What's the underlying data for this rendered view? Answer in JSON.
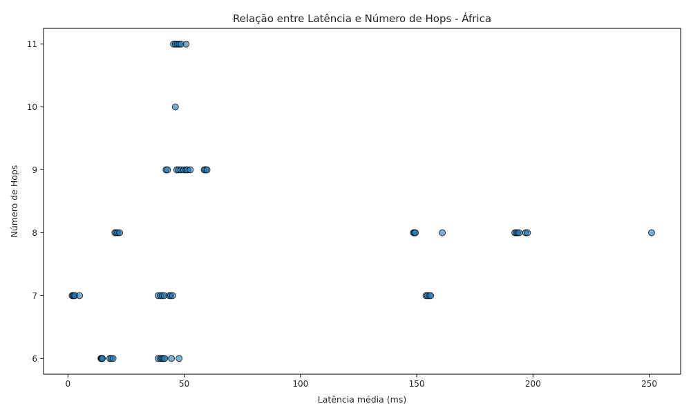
{
  "chart_data": {
    "type": "scatter",
    "title": "Relação entre Latência e Número de Hops - África",
    "xlabel": "Latência média (ms)",
    "ylabel": "Número de Hops",
    "xlim": [
      -10.5,
      263.5
    ],
    "ylim": [
      5.75,
      11.25
    ],
    "xticks": [
      0,
      50,
      100,
      150,
      200,
      250
    ],
    "yticks": [
      6,
      7,
      8,
      9,
      10,
      11
    ],
    "grid": false,
    "point_color": "#1f77b4",
    "edge_color": "#000000",
    "points": [
      {
        "x": 14.2,
        "y": 6
      },
      {
        "x": 14.4,
        "y": 6
      },
      {
        "x": 14.6,
        "y": 6
      },
      {
        "x": 14.8,
        "y": 6
      },
      {
        "x": 18.0,
        "y": 6
      },
      {
        "x": 18.6,
        "y": 6
      },
      {
        "x": 19.4,
        "y": 6
      },
      {
        "x": 38.8,
        "y": 6
      },
      {
        "x": 39.8,
        "y": 6
      },
      {
        "x": 40.4,
        "y": 6
      },
      {
        "x": 41.0,
        "y": 6
      },
      {
        "x": 41.6,
        "y": 6
      },
      {
        "x": 44.5,
        "y": 6
      },
      {
        "x": 47.8,
        "y": 6
      },
      {
        "x": 1.8,
        "y": 7
      },
      {
        "x": 2.2,
        "y": 7
      },
      {
        "x": 2.6,
        "y": 7
      },
      {
        "x": 3.0,
        "y": 7
      },
      {
        "x": 5.0,
        "y": 7
      },
      {
        "x": 38.8,
        "y": 7
      },
      {
        "x": 39.8,
        "y": 7
      },
      {
        "x": 40.6,
        "y": 7
      },
      {
        "x": 41.4,
        "y": 7
      },
      {
        "x": 43.6,
        "y": 7
      },
      {
        "x": 44.2,
        "y": 7
      },
      {
        "x": 45.0,
        "y": 7
      },
      {
        "x": 154.0,
        "y": 7
      },
      {
        "x": 154.6,
        "y": 7
      },
      {
        "x": 155.4,
        "y": 7
      },
      {
        "x": 156.0,
        "y": 7
      },
      {
        "x": 20.2,
        "y": 8
      },
      {
        "x": 20.8,
        "y": 8
      },
      {
        "x": 21.4,
        "y": 8
      },
      {
        "x": 22.2,
        "y": 8
      },
      {
        "x": 148.6,
        "y": 8
      },
      {
        "x": 149.0,
        "y": 8
      },
      {
        "x": 149.4,
        "y": 8
      },
      {
        "x": 161.0,
        "y": 8
      },
      {
        "x": 192.2,
        "y": 8
      },
      {
        "x": 192.8,
        "y": 8
      },
      {
        "x": 193.4,
        "y": 8
      },
      {
        "x": 194.0,
        "y": 8
      },
      {
        "x": 196.8,
        "y": 8
      },
      {
        "x": 197.6,
        "y": 8
      },
      {
        "x": 251.0,
        "y": 8
      },
      {
        "x": 42.2,
        "y": 9
      },
      {
        "x": 42.8,
        "y": 9
      },
      {
        "x": 46.8,
        "y": 9
      },
      {
        "x": 47.6,
        "y": 9
      },
      {
        "x": 48.6,
        "y": 9
      },
      {
        "x": 49.8,
        "y": 9
      },
      {
        "x": 50.8,
        "y": 9
      },
      {
        "x": 51.4,
        "y": 9
      },
      {
        "x": 52.6,
        "y": 9
      },
      {
        "x": 58.6,
        "y": 9
      },
      {
        "x": 59.2,
        "y": 9
      },
      {
        "x": 59.8,
        "y": 9
      },
      {
        "x": 46.2,
        "y": 10
      },
      {
        "x": 45.4,
        "y": 11
      },
      {
        "x": 46.2,
        "y": 11
      },
      {
        "x": 47.0,
        "y": 11
      },
      {
        "x": 47.8,
        "y": 11
      },
      {
        "x": 48.6,
        "y": 11
      },
      {
        "x": 50.8,
        "y": 11
      }
    ]
  }
}
